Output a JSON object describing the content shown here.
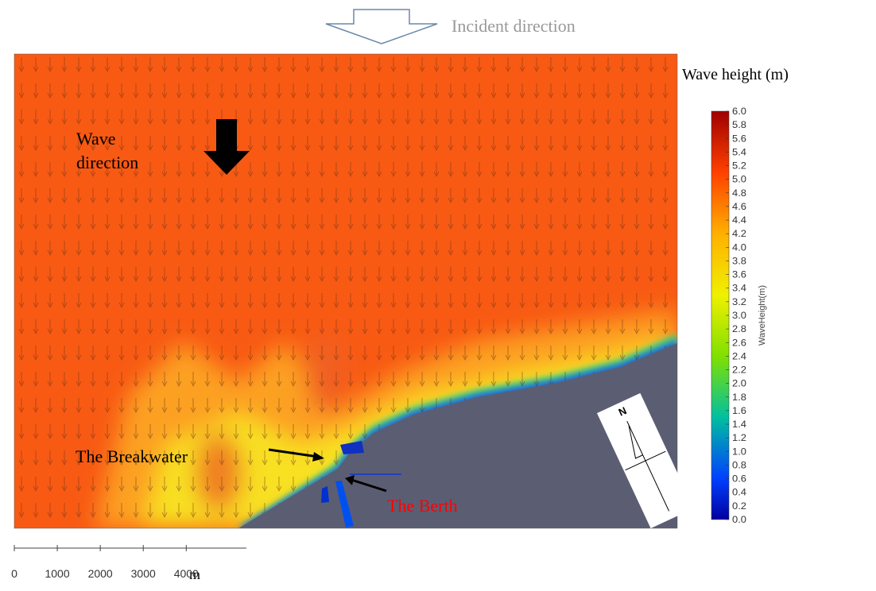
{
  "incident_label": "Incident direction",
  "annotations": {
    "wave_direction": [
      "Wave",
      "direction"
    ],
    "breakwater": "The Breakwater",
    "berth": "The Berth",
    "compass": "N"
  },
  "colorbar": {
    "title": "Wave height (m)",
    "axis_label": "WaveHeight(m)",
    "range": [
      0,
      6
    ],
    "ticks": [
      {
        "value": 0,
        "label": "0.0"
      },
      0.2,
      0.4,
      0.6,
      0.8,
      {
        "value": 1,
        "label": "1.0"
      },
      1.2,
      1.4,
      1.6,
      1.8,
      {
        "value": 2,
        "label": "2.0"
      },
      2.2,
      2.4,
      2.6,
      2.8,
      {
        "value": 3,
        "label": "3.0"
      },
      3.2,
      3.4,
      3.6,
      3.8,
      {
        "value": 4,
        "label": "4.0"
      },
      4.2,
      4.4,
      4.6,
      4.8,
      {
        "value": 5,
        "label": "5.0"
      },
      5.2,
      5.4,
      5.6,
      5.8,
      {
        "value": 6,
        "label": "6.0"
      }
    ]
  },
  "scale_bar": {
    "unit": "m",
    "range": [
      0,
      5400
    ],
    "ticks": [
      0,
      1000,
      2000,
      3000,
      4000
    ]
  }
}
